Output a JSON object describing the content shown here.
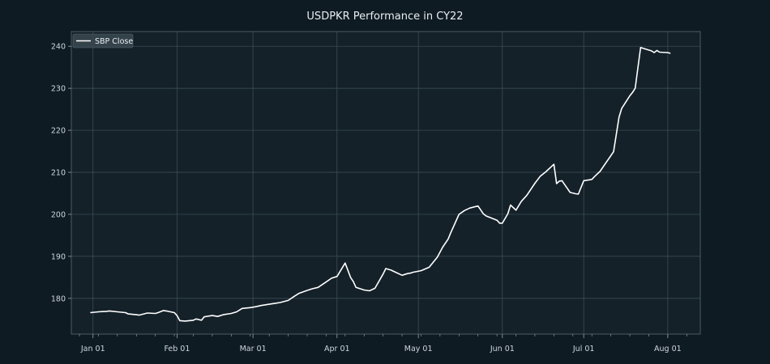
{
  "chart_data": {
    "type": "line",
    "title": "USDPKR Performance in CY22",
    "xlabel": "",
    "ylabel": "",
    "x_ticks": [
      {
        "date": "2022-01-01",
        "label": "Jan 01"
      },
      {
        "date": "2022-02-01",
        "label": "Feb 01"
      },
      {
        "date": "2022-03-01",
        "label": "Mar 01"
      },
      {
        "date": "2022-04-01",
        "label": "Apr 01"
      },
      {
        "date": "2022-05-01",
        "label": "May 01"
      },
      {
        "date": "2022-06-01",
        "label": "Jun 01"
      },
      {
        "date": "2022-07-01",
        "label": "Jul 01"
      },
      {
        "date": "2022-08-01",
        "label": "Aug 01"
      }
    ],
    "y_ticks": [
      180,
      190,
      200,
      210,
      220,
      230,
      240
    ],
    "xlim": [
      "2021-12-24",
      "2022-08-13"
    ],
    "ylim": [
      171.5,
      243.5
    ],
    "grid": true,
    "legend": {
      "placement": "top-left"
    },
    "colors": {
      "background": "#0e1b23",
      "plot_bg": "#142129",
      "grid": "#40525c",
      "line": "#ffffff"
    },
    "series": [
      {
        "name": "SBP Close",
        "x": [
          "2021-12-31",
          "2022-01-03",
          "2022-01-06",
          "2022-01-07",
          "2022-01-10",
          "2022-01-13",
          "2022-01-14",
          "2022-01-17",
          "2022-01-18",
          "2022-01-21",
          "2022-01-24",
          "2022-01-25",
          "2022-01-27",
          "2022-01-28",
          "2022-01-31",
          "2022-02-01",
          "2022-02-02",
          "2022-02-04",
          "2022-02-07",
          "2022-02-08",
          "2022-02-10",
          "2022-02-11",
          "2022-02-14",
          "2022-02-16",
          "2022-02-18",
          "2022-02-21",
          "2022-02-23",
          "2022-02-25",
          "2022-02-28",
          "2022-03-02",
          "2022-03-04",
          "2022-03-07",
          "2022-03-09",
          "2022-03-11",
          "2022-03-14",
          "2022-03-16",
          "2022-03-18",
          "2022-03-21",
          "2022-03-23",
          "2022-03-25",
          "2022-03-28",
          "2022-03-30",
          "2022-04-01",
          "2022-04-04",
          "2022-04-06",
          "2022-04-07",
          "2022-04-08",
          "2022-04-11",
          "2022-04-13",
          "2022-04-15",
          "2022-04-18",
          "2022-04-19",
          "2022-04-21",
          "2022-04-22",
          "2022-04-25",
          "2022-04-27",
          "2022-04-28",
          "2022-04-29",
          "2022-05-02",
          "2022-05-05",
          "2022-05-08",
          "2022-05-10",
          "2022-05-12",
          "2022-05-13",
          "2022-05-16",
          "2022-05-18",
          "2022-05-20",
          "2022-05-23",
          "2022-05-25",
          "2022-05-26",
          "2022-05-30",
          "2022-05-31",
          "2022-06-01",
          "2022-06-03",
          "2022-06-04",
          "2022-06-06",
          "2022-06-08",
          "2022-06-10",
          "2022-06-13",
          "2022-06-15",
          "2022-06-17",
          "2022-06-20",
          "2022-06-21",
          "2022-06-22",
          "2022-06-23",
          "2022-06-26",
          "2022-06-28",
          "2022-06-29",
          "2022-07-01",
          "2022-07-04",
          "2022-07-05",
          "2022-07-06",
          "2022-07-07",
          "2022-07-12",
          "2022-07-14",
          "2022-07-15",
          "2022-07-18",
          "2022-07-19",
          "2022-07-20",
          "2022-07-21",
          "2022-07-22",
          "2022-07-25",
          "2022-07-26",
          "2022-07-27",
          "2022-07-28",
          "2022-07-29",
          "2022-08-01",
          "2022-08-02"
        ],
        "y": [
          176.6,
          176.8,
          176.9,
          177.0,
          176.8,
          176.6,
          176.3,
          176.1,
          176.0,
          176.5,
          176.4,
          176.6,
          177.1,
          177.0,
          176.6,
          175.9,
          174.7,
          174.6,
          174.8,
          175.1,
          174.8,
          175.6,
          175.9,
          175.7,
          176.1,
          176.4,
          176.8,
          177.6,
          177.8,
          178.0,
          178.3,
          178.6,
          178.8,
          179.0,
          179.5,
          180.4,
          181.2,
          181.9,
          182.3,
          182.6,
          183.9,
          184.8,
          185.2,
          188.4,
          185.0,
          184.0,
          182.6,
          182.0,
          181.8,
          182.4,
          185.8,
          187.1,
          186.7,
          186.4,
          185.5,
          185.9,
          186.0,
          186.2,
          186.6,
          187.4,
          189.8,
          192.2,
          194.1,
          195.7,
          200.0,
          200.9,
          201.5,
          202.0,
          200.1,
          199.6,
          198.6,
          197.9,
          197.9,
          200.1,
          202.2,
          201.0,
          203.1,
          204.5,
          207.4,
          209.1,
          210.1,
          211.9,
          207.3,
          207.9,
          208.0,
          205.2,
          204.9,
          204.8,
          208.0,
          208.3,
          209.0,
          209.6,
          210.2,
          214.9,
          223.1,
          225.2,
          228.2,
          229.0,
          230.0,
          235.0,
          239.7,
          239.1,
          238.9,
          238.5,
          239.0,
          238.6,
          238.5,
          238.3
        ]
      }
    ]
  }
}
